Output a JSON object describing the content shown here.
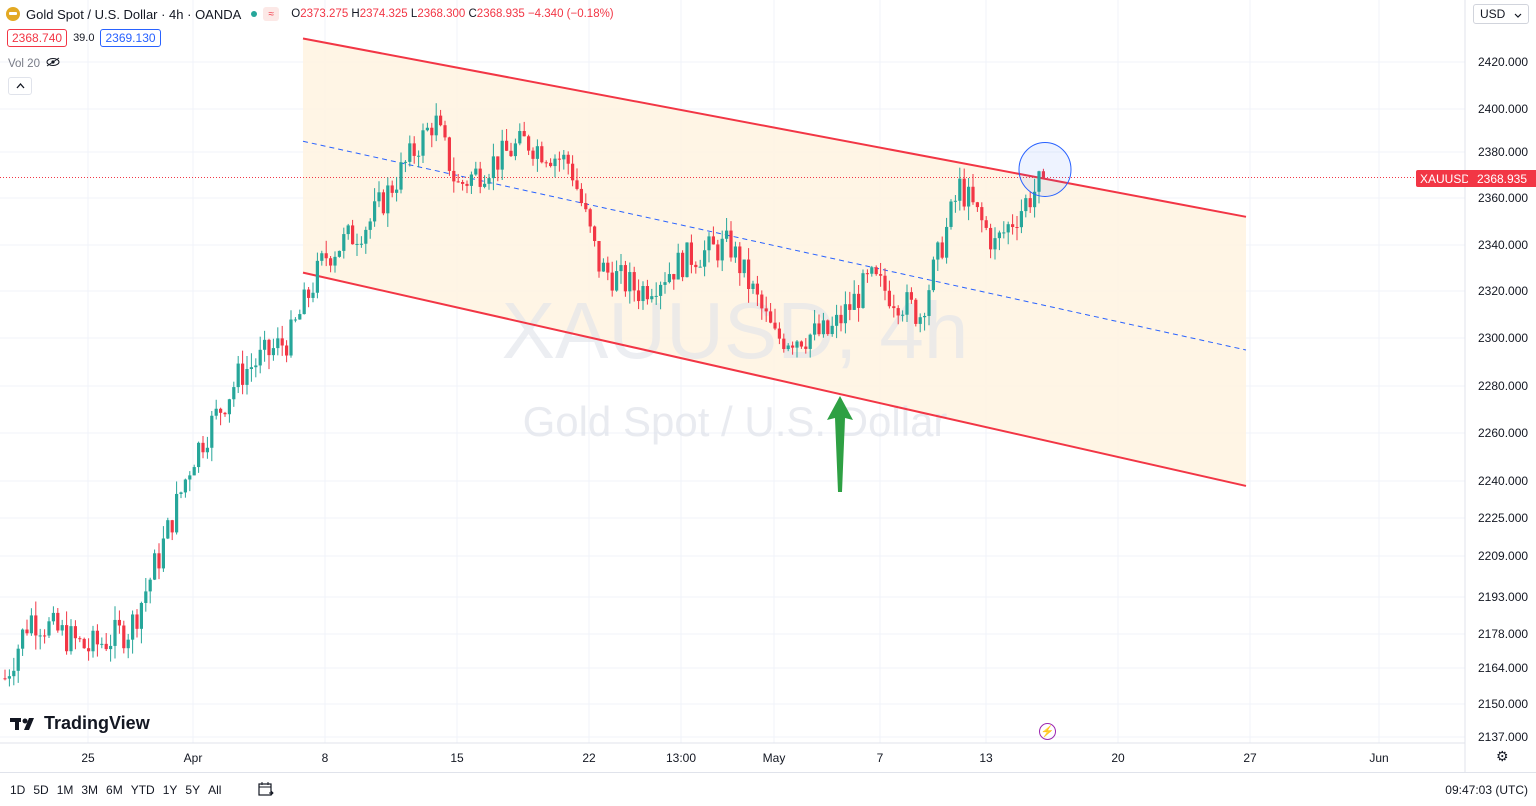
{
  "header": {
    "symbol_title": "Gold Spot / U.S. Dollar · 4h · OANDA",
    "open_label": "O",
    "open": "2373.275",
    "high_label": "H",
    "high": "2374.325",
    "low_label": "L",
    "low": "2368.300",
    "close_label": "C",
    "close": "2368.935",
    "change": "−4.340 (−0.18%)",
    "bid": "2368.740",
    "spread": "39.0",
    "ask": "2369.130",
    "volume_label": "Vol 20"
  },
  "currency": "USD",
  "watermark": {
    "line1": "XAUUSD, 4h",
    "line2": "Gold Spot / U.S. Dollar"
  },
  "brand": "TradingView",
  "ranges": [
    "1D",
    "5D",
    "1M",
    "3M",
    "6M",
    "YTD",
    "1Y",
    "5Y",
    "All"
  ],
  "clock": "09:47:03 (UTC)",
  "last_price": {
    "symbol": "XAUUSD",
    "value": "2368.935"
  },
  "colors": {
    "up": "#26a69a",
    "down": "#f23645",
    "channel": "#f23645",
    "fill": "#fff3e0",
    "mid": "#2962ff",
    "arrow": "#2ea043"
  },
  "chart_data": {
    "type": "candlestick",
    "timeframe": "4h",
    "y_tick_labels": [
      "2137.000",
      "2150.000",
      "2164.000",
      "2178.000",
      "2193.000",
      "2209.000",
      "2225.000",
      "2240.000",
      "2260.000",
      "2280.000",
      "2300.000",
      "2320.000",
      "2340.000",
      "2360.000",
      "2380.000",
      "2400.000",
      "2420.000"
    ],
    "x_tick_labels": [
      "25",
      "Apr",
      "8",
      "15",
      "22",
      "13:00",
      "May",
      "7",
      "13",
      "20",
      "27",
      "Jun"
    ],
    "close_path": [
      {
        "date": "Mar 21",
        "close": 2160
      },
      {
        "date": "Mar 22",
        "close": 2185
      },
      {
        "date": "Mar 25",
        "close": 2172
      },
      {
        "date": "Mar 27",
        "close": 2180
      },
      {
        "date": "Mar 28",
        "close": 2210
      },
      {
        "date": "Apr 1",
        "close": 2250
      },
      {
        "date": "Apr 3",
        "close": 2285
      },
      {
        "date": "Apr 5",
        "close": 2300
      },
      {
        "date": "Apr 8",
        "close": 2335
      },
      {
        "date": "Apr 10",
        "close": 2350
      },
      {
        "date": "Apr 12",
        "close": 2395
      },
      {
        "date": "Apr 15",
        "close": 2365
      },
      {
        "date": "Apr 18",
        "close": 2385
      },
      {
        "date": "Apr 19",
        "close": 2375
      },
      {
        "date": "Apr 22",
        "close": 2330
      },
      {
        "date": "Apr 24",
        "close": 2320
      },
      {
        "date": "Apr 26",
        "close": 2335
      },
      {
        "date": "Apr 29",
        "close": 2340
      },
      {
        "date": "May 1",
        "close": 2300
      },
      {
        "date": "May 3",
        "close": 2302
      },
      {
        "date": "May 6",
        "close": 2325
      },
      {
        "date": "May 8",
        "close": 2310
      },
      {
        "date": "May 10",
        "close": 2365
      },
      {
        "date": "May 13",
        "close": 2340
      },
      {
        "date": "May 14",
        "close": 2355
      },
      {
        "date": "May 15",
        "close": 2368.935
      }
    ],
    "channel": {
      "upper": [
        2430,
        2352
      ],
      "lower": [
        2328,
        2238
      ],
      "middle": [
        2385,
        2295
      ]
    },
    "current_price": 2368.935
  }
}
